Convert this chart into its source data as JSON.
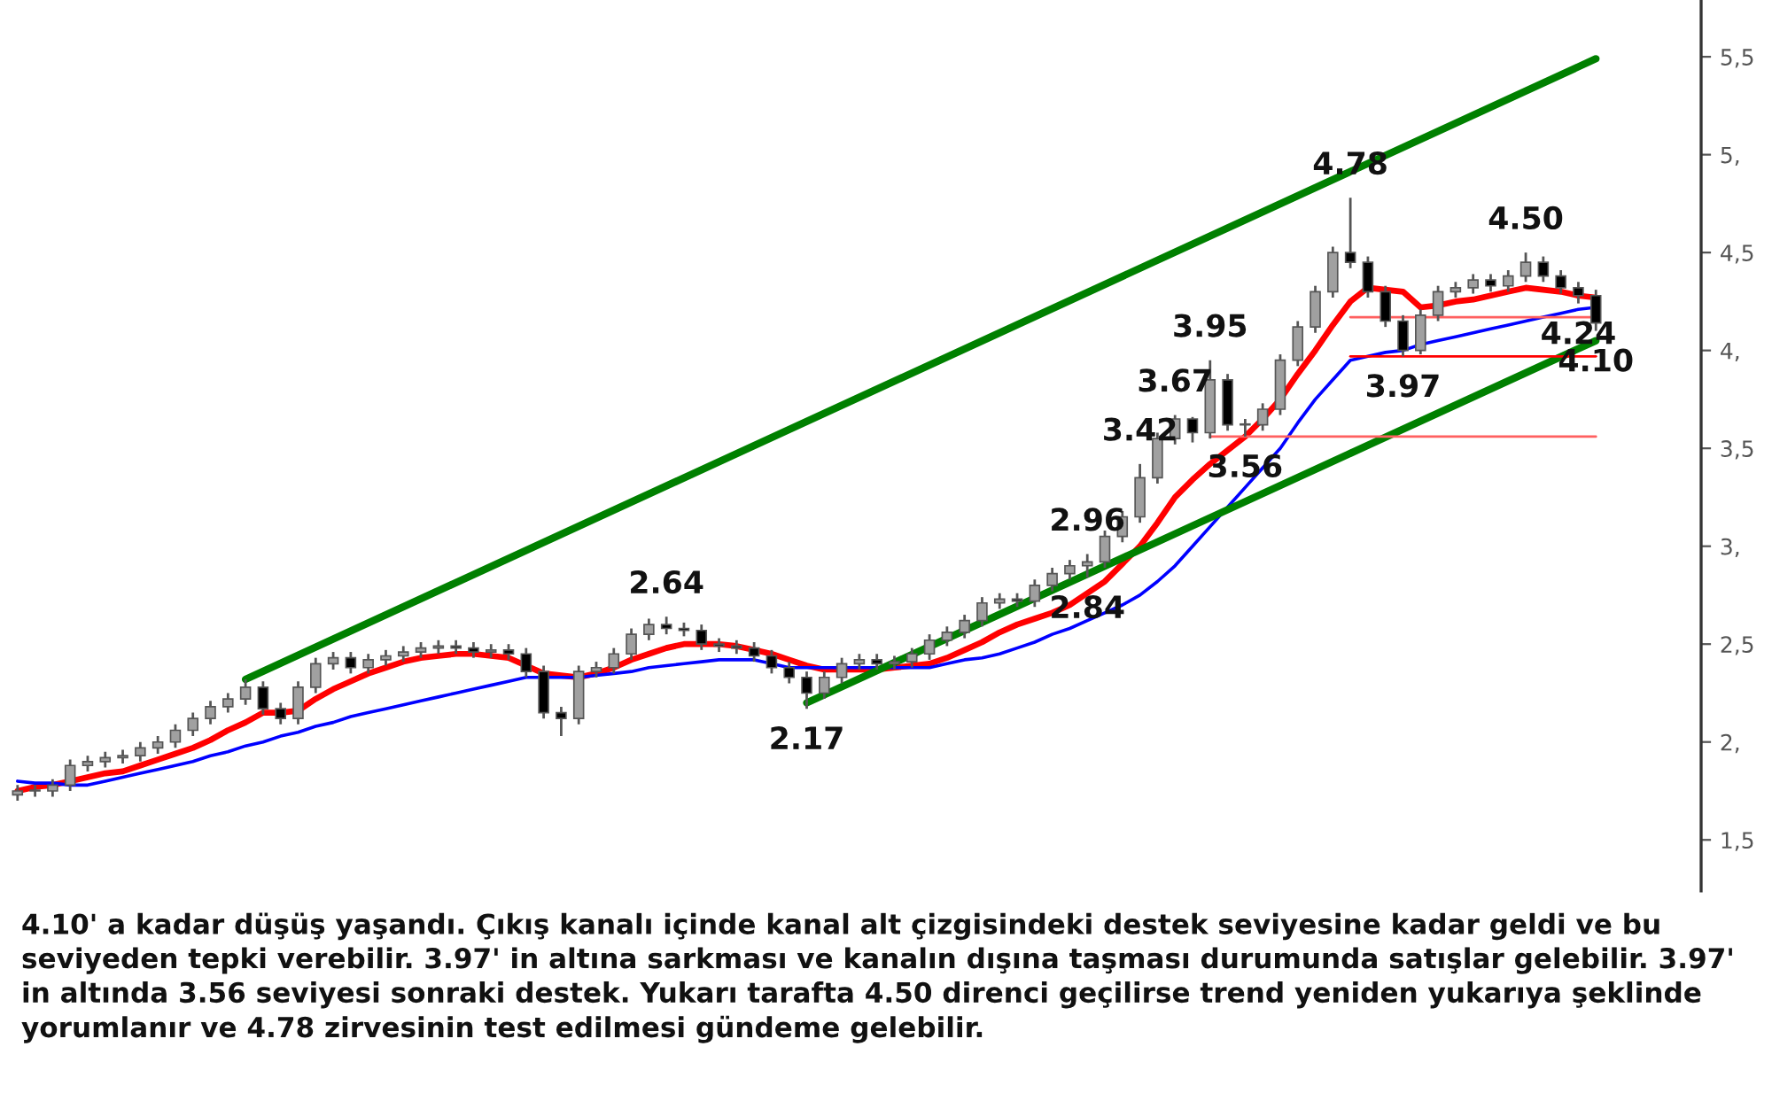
{
  "chart_data": {
    "type": "candlestick",
    "color": "#555555",
    "categories": [
      null,
      null,
      null,
      null,
      null,
      null,
      null,
      null,
      null,
      null,
      null,
      null,
      null,
      null,
      null,
      null,
      null,
      null,
      null,
      null,
      null,
      null,
      null,
      null,
      null,
      null,
      null,
      null,
      null,
      null,
      null,
      null,
      null,
      null,
      null,
      null,
      null,
      null,
      null,
      null,
      null,
      null,
      null,
      null,
      null,
      null,
      null,
      null,
      null,
      null,
      null,
      null,
      null,
      null,
      null,
      null,
      null,
      null,
      null,
      null,
      null,
      null,
      null,
      null,
      null,
      null,
      null,
      null,
      null,
      null,
      null,
      null,
      null,
      null,
      null,
      null,
      null,
      null,
      null,
      null,
      null,
      null,
      null,
      null,
      null,
      null,
      null,
      null,
      null,
      null,
      null
    ],
    "ohlc": [
      [
        1.73,
        1.78,
        1.7,
        1.75
      ],
      [
        1.75,
        1.78,
        1.72,
        1.75
      ],
      [
        1.75,
        1.81,
        1.72,
        1.78
      ],
      [
        1.78,
        1.91,
        1.75,
        1.88
      ],
      [
        1.88,
        1.93,
        1.85,
        1.9
      ],
      [
        1.9,
        1.95,
        1.87,
        1.92
      ],
      [
        1.92,
        1.96,
        1.89,
        1.93
      ],
      [
        1.93,
        2.0,
        1.9,
        1.97
      ],
      [
        1.97,
        2.03,
        1.94,
        2.0
      ],
      [
        2.0,
        2.09,
        1.97,
        2.06
      ],
      [
        2.06,
        2.15,
        2.03,
        2.12
      ],
      [
        2.12,
        2.21,
        2.09,
        2.18
      ],
      [
        2.18,
        2.25,
        2.15,
        2.22
      ],
      [
        2.22,
        2.32,
        2.19,
        2.28
      ],
      [
        2.28,
        2.31,
        2.14,
        2.17
      ],
      [
        2.17,
        2.2,
        2.09,
        2.12
      ],
      [
        2.12,
        2.31,
        2.09,
        2.28
      ],
      [
        2.28,
        2.43,
        2.25,
        2.4
      ],
      [
        2.4,
        2.46,
        2.37,
        2.43
      ],
      [
        2.43,
        2.46,
        2.35,
        2.38
      ],
      [
        2.38,
        2.45,
        2.35,
        2.42
      ],
      [
        2.42,
        2.47,
        2.39,
        2.44
      ],
      [
        2.44,
        2.49,
        2.41,
        2.46
      ],
      [
        2.46,
        2.51,
        2.43,
        2.48
      ],
      [
        2.48,
        2.52,
        2.45,
        2.49
      ],
      [
        2.49,
        2.52,
        2.45,
        2.48
      ],
      [
        2.48,
        2.51,
        2.43,
        2.46
      ],
      [
        2.46,
        2.5,
        2.43,
        2.47
      ],
      [
        2.47,
        2.5,
        2.42,
        2.45
      ],
      [
        2.45,
        2.48,
        2.33,
        2.36
      ],
      [
        2.36,
        2.39,
        2.12,
        2.15
      ],
      [
        2.15,
        2.18,
        2.03,
        2.12
      ],
      [
        2.12,
        2.39,
        2.09,
        2.36
      ],
      [
        2.36,
        2.41,
        2.33,
        2.38
      ],
      [
        2.38,
        2.48,
        2.35,
        2.45
      ],
      [
        2.45,
        2.58,
        2.42,
        2.55
      ],
      [
        2.55,
        2.63,
        2.52,
        2.6
      ],
      [
        2.6,
        2.64,
        2.55,
        2.58
      ],
      [
        2.58,
        2.61,
        2.54,
        2.57
      ],
      [
        2.57,
        2.6,
        2.47,
        2.5
      ],
      [
        2.5,
        2.53,
        2.46,
        2.49
      ],
      [
        2.49,
        2.52,
        2.45,
        2.48
      ],
      [
        2.48,
        2.51,
        2.41,
        2.44
      ],
      [
        2.44,
        2.47,
        2.35,
        2.38
      ],
      [
        2.38,
        2.41,
        2.3,
        2.33
      ],
      [
        2.33,
        2.36,
        2.17,
        2.25
      ],
      [
        2.25,
        2.36,
        2.22,
        2.33
      ],
      [
        2.33,
        2.43,
        2.3,
        2.4
      ],
      [
        2.4,
        2.45,
        2.37,
        2.42
      ],
      [
        2.42,
        2.45,
        2.37,
        2.4
      ],
      [
        2.4,
        2.44,
        2.37,
        2.41
      ],
      [
        2.41,
        2.48,
        2.38,
        2.45
      ],
      [
        2.45,
        2.55,
        2.42,
        2.52
      ],
      [
        2.52,
        2.59,
        2.49,
        2.56
      ],
      [
        2.56,
        2.65,
        2.53,
        2.62
      ],
      [
        2.62,
        2.74,
        2.59,
        2.71
      ],
      [
        2.71,
        2.76,
        2.68,
        2.73
      ],
      [
        2.73,
        2.76,
        2.69,
        2.72
      ],
      [
        2.72,
        2.83,
        2.69,
        2.8
      ],
      [
        2.8,
        2.89,
        2.77,
        2.86
      ],
      [
        2.86,
        2.93,
        2.83,
        2.9
      ],
      [
        2.9,
        2.96,
        2.84,
        2.92
      ],
      [
        2.92,
        3.08,
        2.89,
        3.05
      ],
      [
        3.05,
        3.18,
        3.02,
        3.15
      ],
      [
        3.15,
        3.42,
        3.12,
        3.35
      ],
      [
        3.35,
        3.58,
        3.32,
        3.55
      ],
      [
        3.55,
        3.67,
        3.52,
        3.65
      ],
      [
        3.65,
        3.66,
        3.53,
        3.58
      ],
      [
        3.58,
        3.95,
        3.55,
        3.85
      ],
      [
        3.85,
        3.88,
        3.59,
        3.62
      ],
      [
        3.62,
        3.65,
        3.56,
        3.62
      ],
      [
        3.62,
        3.73,
        3.59,
        3.7
      ],
      [
        3.7,
        3.98,
        3.67,
        3.95
      ],
      [
        3.95,
        4.15,
        3.92,
        4.12
      ],
      [
        4.12,
        4.33,
        4.09,
        4.3
      ],
      [
        4.3,
        4.53,
        4.27,
        4.5
      ],
      [
        4.5,
        4.78,
        4.42,
        4.45
      ],
      [
        4.45,
        4.48,
        4.27,
        4.3
      ],
      [
        4.3,
        4.33,
        4.12,
        4.15
      ],
      [
        4.15,
        4.18,
        3.97,
        4.0
      ],
      [
        4.0,
        4.21,
        3.98,
        4.18
      ],
      [
        4.18,
        4.33,
        4.15,
        4.3
      ],
      [
        4.3,
        4.35,
        4.27,
        4.32
      ],
      [
        4.32,
        4.39,
        4.29,
        4.36
      ],
      [
        4.36,
        4.39,
        4.3,
        4.33
      ],
      [
        4.33,
        4.41,
        4.3,
        4.38
      ],
      [
        4.38,
        4.5,
        4.35,
        4.45
      ],
      [
        4.45,
        4.48,
        4.35,
        4.38
      ],
      [
        4.38,
        4.41,
        4.29,
        4.32
      ],
      [
        4.32,
        4.35,
        4.24,
        4.28
      ],
      [
        4.28,
        4.31,
        4.1,
        4.14
      ]
    ],
    "series": [
      {
        "type": "line",
        "color": "#ff0000",
        "values": [
          1.75,
          1.77,
          1.78,
          1.8,
          1.82,
          1.84,
          1.85,
          1.88,
          1.91,
          1.94,
          1.97,
          2.01,
          2.06,
          2.1,
          2.15,
          2.15,
          2.16,
          2.22,
          2.27,
          2.31,
          2.35,
          2.38,
          2.41,
          2.43,
          2.44,
          2.45,
          2.45,
          2.44,
          2.43,
          2.39,
          2.35,
          2.34,
          2.33,
          2.35,
          2.38,
          2.42,
          2.45,
          2.48,
          2.5,
          2.5,
          2.5,
          2.49,
          2.47,
          2.45,
          2.42,
          2.39,
          2.37,
          2.37,
          2.37,
          2.37,
          2.38,
          2.39,
          2.4,
          2.43,
          2.47,
          2.51,
          2.56,
          2.6,
          2.63,
          2.66,
          2.7,
          2.76,
          2.82,
          2.91,
          3.0,
          3.12,
          3.25,
          3.34,
          3.42,
          3.49,
          3.56,
          3.65,
          3.75,
          3.88,
          4.0,
          4.13,
          4.25,
          4.32,
          4.31,
          4.3,
          4.22,
          4.23,
          4.25,
          4.26,
          4.28,
          4.3,
          4.32,
          4.31,
          4.3,
          4.28,
          4.27
        ]
      },
      {
        "type": "line",
        "color": "#0000ff",
        "values": [
          1.8,
          1.79,
          1.79,
          1.78,
          1.78,
          1.8,
          1.82,
          1.84,
          1.86,
          1.88,
          1.9,
          1.93,
          1.95,
          1.98,
          2.0,
          2.03,
          2.05,
          2.08,
          2.1,
          2.13,
          2.15,
          2.17,
          2.19,
          2.21,
          2.23,
          2.25,
          2.27,
          2.29,
          2.31,
          2.33,
          2.33,
          2.33,
          2.33,
          2.34,
          2.35,
          2.36,
          2.38,
          2.39,
          2.4,
          2.41,
          2.42,
          2.42,
          2.42,
          2.4,
          2.38,
          2.38,
          2.38,
          2.38,
          2.38,
          2.38,
          2.38,
          2.38,
          2.38,
          2.4,
          2.42,
          2.43,
          2.45,
          2.48,
          2.51,
          2.55,
          2.58,
          2.62,
          2.66,
          2.7,
          2.75,
          2.82,
          2.9,
          3.0,
          3.1,
          3.2,
          3.3,
          3.4,
          3.5,
          3.63,
          3.75,
          3.85,
          3.95,
          3.97,
          3.99,
          4.0,
          4.03,
          4.05,
          4.07,
          4.09,
          4.11,
          4.13,
          4.15,
          4.17,
          4.19,
          4.21,
          4.22
        ]
      },
      {
        "type": "line",
        "color": "#008000",
        "values": [
          null,
          null,
          null,
          null,
          null,
          null,
          null,
          null,
          null,
          null,
          null,
          null,
          null,
          2.32,
          null,
          null,
          null,
          null,
          null,
          null,
          null,
          null,
          null,
          null,
          null,
          null,
          null,
          null,
          null,
          null,
          null,
          null,
          null,
          null,
          null,
          null,
          null,
          null,
          null,
          null,
          null,
          null,
          null,
          null,
          null,
          null,
          null,
          null,
          null,
          null,
          null,
          null,
          null,
          null,
          null,
          null,
          null,
          null,
          null,
          null,
          null,
          null,
          null,
          null,
          null,
          null,
          null,
          null,
          null,
          null,
          null,
          null,
          null,
          null,
          null,
          null,
          null,
          null,
          null,
          null,
          null,
          null,
          null,
          null,
          null,
          null,
          null,
          null,
          null,
          null,
          5.49
        ]
      },
      {
        "type": "line",
        "color": "#008000",
        "values": [
          null,
          null,
          null,
          null,
          null,
          null,
          null,
          null,
          null,
          null,
          null,
          null,
          null,
          null,
          null,
          null,
          null,
          null,
          null,
          null,
          null,
          null,
          null,
          null,
          null,
          null,
          null,
          null,
          null,
          null,
          null,
          null,
          null,
          null,
          null,
          null,
          null,
          null,
          null,
          null,
          null,
          null,
          null,
          null,
          null,
          2.2,
          null,
          null,
          null,
          null,
          null,
          null,
          null,
          null,
          null,
          null,
          null,
          null,
          null,
          null,
          null,
          null,
          null,
          null,
          null,
          null,
          null,
          null,
          null,
          null,
          null,
          null,
          null,
          null,
          null,
          null,
          null,
          null,
          null,
          null,
          null,
          null,
          null,
          null,
          null,
          null,
          null,
          null,
          null,
          null,
          4.05
        ]
      },
      {
        "type": "line",
        "color": "#ff6060",
        "values": [
          null,
          null,
          null,
          null,
          null,
          null,
          null,
          null,
          null,
          null,
          null,
          null,
          null,
          null,
          null,
          null,
          null,
          null,
          null,
          null,
          null,
          null,
          null,
          null,
          null,
          null,
          null,
          null,
          null,
          null,
          null,
          null,
          null,
          null,
          null,
          null,
          null,
          null,
          null,
          null,
          null,
          null,
          null,
          null,
          null,
          null,
          null,
          null,
          null,
          null,
          null,
          null,
          null,
          null,
          null,
          null,
          null,
          null,
          null,
          null,
          null,
          null,
          null,
          null,
          null,
          null,
          null,
          null,
          null,
          null,
          null,
          null,
          null,
          null,
          null,
          null,
          4.17,
          null,
          null,
          null,
          null,
          null,
          null,
          null,
          null,
          null,
          null,
          null,
          null,
          null,
          4.17
        ]
      },
      {
        "type": "line",
        "color": "#ff0000",
        "values": [
          null,
          null,
          null,
          null,
          null,
          null,
          null,
          null,
          null,
          null,
          null,
          null,
          null,
          null,
          null,
          null,
          null,
          null,
          null,
          null,
          null,
          null,
          null,
          null,
          null,
          null,
          null,
          null,
          null,
          null,
          null,
          null,
          null,
          null,
          null,
          null,
          null,
          null,
          null,
          null,
          null,
          null,
          null,
          null,
          null,
          null,
          null,
          null,
          null,
          null,
          null,
          null,
          null,
          null,
          null,
          null,
          null,
          null,
          null,
          null,
          null,
          null,
          null,
          null,
          null,
          null,
          null,
          null,
          null,
          null,
          null,
          null,
          null,
          null,
          null,
          null,
          3.97,
          null,
          null,
          null,
          null,
          null,
          null,
          null,
          null,
          null,
          null,
          null,
          null,
          null,
          3.97
        ]
      },
      {
        "type": "line",
        "color": "#ff6060",
        "values": [
          null,
          null,
          null,
          null,
          null,
          null,
          null,
          null,
          null,
          null,
          null,
          null,
          null,
          null,
          null,
          null,
          null,
          null,
          null,
          null,
          null,
          null,
          null,
          null,
          null,
          null,
          null,
          null,
          null,
          null,
          null,
          null,
          null,
          null,
          null,
          null,
          null,
          null,
          null,
          null,
          null,
          null,
          null,
          null,
          null,
          null,
          null,
          null,
          null,
          null,
          null,
          null,
          null,
          null,
          null,
          null,
          null,
          null,
          null,
          null,
          null,
          null,
          null,
          null,
          null,
          null,
          null,
          null,
          3.56,
          null,
          null,
          null,
          null,
          null,
          null,
          null,
          null,
          null,
          null,
          null,
          null,
          null,
          null,
          null,
          null,
          null,
          null,
          null,
          null,
          null,
          3.56
        ]
      }
    ],
    "ylim": [
      1.24,
      5.79
    ],
    "yticks": [
      {
        "value": 1.5,
        "label": "1,5"
      },
      {
        "value": 2,
        "label": "2,"
      },
      {
        "value": 2.5,
        "label": "2,5"
      },
      {
        "value": 3,
        "label": "3,"
      },
      {
        "value": 3.5,
        "label": "3,5"
      },
      {
        "value": 4,
        "label": "4,"
      },
      {
        "value": 4.5,
        "label": "4,5"
      },
      {
        "value": 5,
        "label": "5,"
      },
      {
        "value": 5.5,
        "label": "5,5"
      }
    ],
    "tick_labels": "y",
    "annotations": [
      {
        "text": "4.78",
        "y": 4.78
      },
      {
        "text": "4.50",
        "y": 4.5
      },
      {
        "text": "4.24",
        "y": 4.24
      },
      {
        "text": "4.10",
        "y": 4.1
      },
      {
        "text": "3.97",
        "y": 3.97
      },
      {
        "text": "3.95",
        "y": 3.95
      },
      {
        "text": "3.67",
        "y": 3.67
      },
      {
        "text": "3.56",
        "y": 3.56
      },
      {
        "text": "3.42",
        "y": 3.42
      },
      {
        "text": "2.96",
        "y": 2.96
      },
      {
        "text": "2.84",
        "y": 2.84
      },
      {
        "text": "2.64",
        "y": 2.64
      },
      {
        "text": "2.17",
        "y": 2.17
      },
      "4.10' a kadar düşüş yaşandı. Çıkış kanalı içinde kanal alt çizgisindeki destek seviyesine kadar geldi ve bu seviyeden tepki verebilir. 3.97' in altına sarkması ve kanalın dışına taşması durumunda satışlar gelebilir. 3.97' in altında 3.56 seviyesi sonraki destek. Yukarı tarafta 4.50 direnci geçilirse trend yeniden yukarıya şeklinde yorumlanır ve 4.78 zirvesinin test edilmesi gündeme gelebilir."
    ]
  }
}
